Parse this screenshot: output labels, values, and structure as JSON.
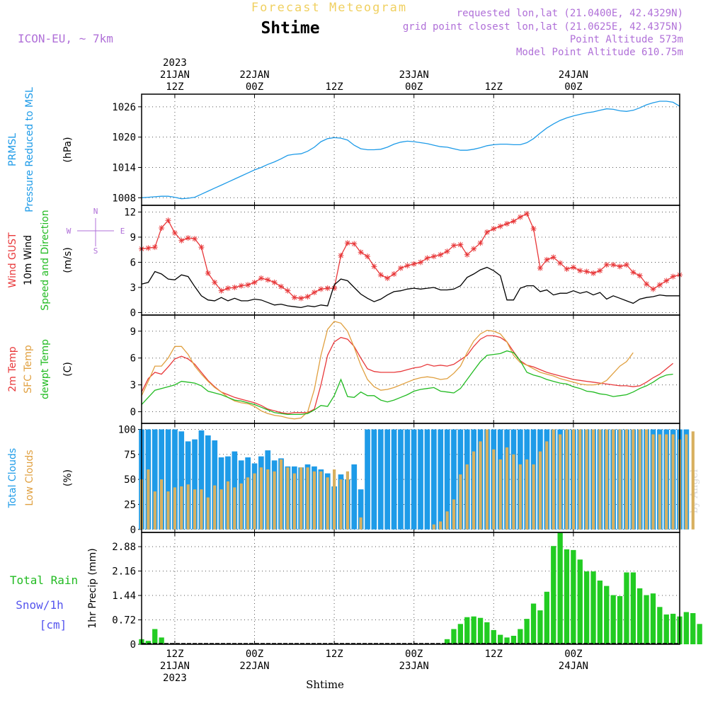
{
  "header": {
    "top_title": "Forecast Meteogram",
    "location": "Shtime",
    "model": "ICON-EU, ~ 7km",
    "requested": "requested lon,lat (21.0400E, 42.4329N)",
    "gridpoint": "grid point closest lon,lat (21.0625E, 42.4375N)",
    "point_alt": "Point Altitude 573m",
    "model_alt": "Model Point Altitude 610.75m",
    "footer_location": "Shtime",
    "credit": "by Angel"
  },
  "time_axis": {
    "top_labels": [
      {
        "t": 12,
        "lines": [
          "2023",
          "21JAN",
          "12Z"
        ]
      },
      {
        "t": 24,
        "lines": [
          "22JAN",
          "00Z"
        ]
      },
      {
        "t": 36,
        "lines": [
          "12Z"
        ]
      },
      {
        "t": 48,
        "lines": [
          "23JAN",
          "00Z"
        ]
      },
      {
        "t": 60,
        "lines": [
          "12Z"
        ]
      },
      {
        "t": 72,
        "lines": [
          "24JAN",
          "00Z"
        ]
      }
    ],
    "bottom_labels": [
      {
        "t": 12,
        "lines": [
          "12Z",
          "21JAN",
          "2023"
        ]
      },
      {
        "t": 24,
        "lines": [
          "00Z",
          "22JAN"
        ]
      },
      {
        "t": 36,
        "lines": [
          "12Z"
        ]
      },
      {
        "t": 48,
        "lines": [
          "00Z",
          "23JAN"
        ]
      },
      {
        "t": 60,
        "lines": [
          "12Z"
        ]
      },
      {
        "t": 72,
        "lines": [
          "00Z",
          "24JAN"
        ]
      }
    ]
  },
  "chart_data": [
    {
      "type": "line",
      "panel": "pressure",
      "ylabel_lines": [
        {
          "text": "PRMSL",
          "color": "#1e9be8"
        },
        {
          "text": "Pressure Reduced to MSL",
          "color": "#1e9be8"
        },
        {
          "text": "(hPa)",
          "color": "#000000"
        }
      ],
      "ylim": [
        1006.5,
        1028.5
      ],
      "yticks": [
        "1008",
        "1014",
        "1020",
        "1026"
      ],
      "ytick_values": [
        1008,
        1014,
        1020,
        1026
      ],
      "series": [
        {
          "color": "#1e9be8",
          "x_start": 7,
          "x_step": 1,
          "values": [
            1008.0,
            1008.1,
            1008.2,
            1008.3,
            1008.3,
            1008.1,
            1007.8,
            1007.9,
            1008.1,
            1008.7,
            1009.3,
            1009.9,
            1010.5,
            1011.1,
            1011.7,
            1012.3,
            1012.9,
            1013.5,
            1014.0,
            1014.6,
            1015.1,
            1015.7,
            1016.4,
            1016.6,
            1016.7,
            1017.2,
            1018.0,
            1019.1,
            1019.7,
            1019.9,
            1019.8,
            1019.4,
            1018.4,
            1017.7,
            1017.5,
            1017.5,
            1017.6,
            1018.0,
            1018.6,
            1019.0,
            1019.2,
            1019.1,
            1018.9,
            1018.7,
            1018.4,
            1018.1,
            1018.0,
            1017.7,
            1017.4,
            1017.4,
            1017.6,
            1017.9,
            1018.3,
            1018.5,
            1018.6,
            1018.6,
            1018.5,
            1018.5,
            1018.9,
            1019.7,
            1020.8,
            1021.8,
            1022.6,
            1023.3,
            1023.8,
            1024.2,
            1024.5,
            1024.8,
            1025.0,
            1025.3,
            1025.6,
            1025.5,
            1025.2,
            1025.1,
            1025.3,
            1025.8,
            1026.4,
            1026.8,
            1027.1,
            1027.1,
            1026.9,
            1026.1
          ]
        }
      ]
    },
    {
      "type": "line",
      "panel": "wind",
      "ylabel_lines": [
        {
          "text": "Wind GUST",
          "color": "#e8383a"
        },
        {
          "text": "10m Wind",
          "color": "#000000"
        },
        {
          "text": "Speed and Direction",
          "color": "#22bb22"
        },
        {
          "text": "(m/s)",
          "color": "#000000"
        }
      ],
      "compass": {
        "n": "N",
        "w": "W",
        "e": "E",
        "s": "S"
      },
      "ylim": [
        -0.3,
        12.8
      ],
      "yticks": [
        "0",
        "3",
        "6",
        "9",
        "12"
      ],
      "ytick_values": [
        0,
        3,
        6,
        9,
        12
      ],
      "series": [
        {
          "name": "gust",
          "color": "#e8383a",
          "x_start": 7,
          "x_step": 1,
          "values": [
            7.6,
            7.7,
            7.8,
            10.1,
            11.0,
            9.5,
            8.6,
            8.9,
            8.8,
            7.8,
            4.7,
            3.6,
            2.6,
            2.9,
            3.0,
            3.2,
            3.3,
            3.6,
            4.1,
            3.9,
            3.6,
            3.1,
            2.6,
            1.8,
            1.7,
            1.9,
            2.4,
            2.8,
            2.9,
            2.9,
            6.8,
            8.3,
            8.2,
            7.2,
            6.7,
            5.5,
            4.5,
            4.1,
            4.6,
            5.3,
            5.6,
            5.8,
            6.0,
            6.5,
            6.7,
            6.9,
            7.3,
            8.0,
            8.1,
            6.9,
            7.6,
            8.3,
            9.6,
            10.0,
            10.3,
            10.6,
            10.9,
            11.4,
            11.8,
            10.0,
            5.3,
            6.3,
            6.6,
            5.9,
            5.2,
            5.4,
            5.0,
            4.9,
            4.7,
            5.0,
            5.7,
            5.7,
            5.5,
            5.7,
            4.8,
            4.4,
            3.4,
            2.8,
            3.3,
            3.8,
            4.3,
            4.5
          ]
        },
        {
          "name": "wind10m",
          "color": "#000000",
          "x_start": 7,
          "x_step": 1,
          "values": [
            3.4,
            3.6,
            4.9,
            4.6,
            4.0,
            3.9,
            4.5,
            4.3,
            3.1,
            2.0,
            1.5,
            1.4,
            1.8,
            1.4,
            1.7,
            1.4,
            1.4,
            1.6,
            1.5,
            1.2,
            0.9,
            1.0,
            0.8,
            0.7,
            0.6,
            0.8,
            0.7,
            0.9,
            0.8,
            3.3,
            4.0,
            3.8,
            3.0,
            2.2,
            1.7,
            1.3,
            1.6,
            2.1,
            2.5,
            2.6,
            2.8,
            2.9,
            2.8,
            2.9,
            3.0,
            2.7,
            2.7,
            2.8,
            3.2,
            4.2,
            4.6,
            5.1,
            5.4,
            5.0,
            4.4,
            1.5,
            1.5,
            2.9,
            3.2,
            3.2,
            2.5,
            2.7,
            2.1,
            2.3,
            2.3,
            2.6,
            2.3,
            2.5,
            2.1,
            2.4,
            1.6,
            2.0,
            1.7,
            1.4,
            1.1,
            1.6,
            1.8,
            1.9,
            2.1,
            2.0,
            2.0,
            2.0
          ]
        }
      ]
    },
    {
      "type": "line",
      "panel": "temperature",
      "ylabel_lines": [
        {
          "text": "2m Temp",
          "color": "#e8383a"
        },
        {
          "text": "SFC Temp",
          "color": "#e0a040"
        },
        {
          "text": "dewpt Temp",
          "color": "#22bb22"
        },
        {
          "text": "(C)",
          "color": "#000000"
        }
      ],
      "ylim": [
        -1.3,
        10.8
      ],
      "yticks": [
        "0",
        "3",
        "6",
        "9"
      ],
      "ytick_values": [
        0,
        3,
        6,
        9
      ],
      "series": [
        {
          "name": "2m",
          "color": "#e8383a",
          "x_start": 7,
          "x_step": 1,
          "values": [
            2.2,
            3.7,
            4.4,
            4.2,
            5.0,
            5.9,
            6.2,
            5.9,
            5.3,
            4.4,
            3.5,
            2.8,
            2.2,
            1.9,
            1.6,
            1.4,
            1.2,
            1.0,
            0.7,
            0.3,
            0.1,
            -0.1,
            -0.2,
            -0.1,
            -0.1,
            -0.1,
            0.3,
            3.0,
            6.3,
            7.8,
            8.3,
            8.1,
            7.3,
            6.0,
            4.8,
            4.5,
            4.4,
            4.4,
            4.4,
            4.5,
            4.7,
            4.9,
            5.0,
            5.3,
            5.1,
            5.2,
            5.1,
            5.3,
            5.8,
            6.3,
            7.3,
            8.1,
            8.5,
            8.5,
            8.3,
            7.8,
            6.7,
            5.7,
            5.2,
            5.0,
            4.7,
            4.4,
            4.2,
            4.0,
            3.8,
            3.6,
            3.5,
            3.4,
            3.3,
            3.2,
            3.1,
            3.0,
            2.9,
            2.9,
            2.8,
            2.9,
            3.3,
            3.8,
            4.2,
            4.8,
            5.4
          ]
        },
        {
          "name": "sfc",
          "color": "#e0a040",
          "x_start": 7,
          "x_step": 1,
          "values": [
            1.8,
            3.4,
            5.1,
            5.1,
            6.0,
            7.3,
            7.3,
            6.4,
            5.1,
            4.2,
            3.4,
            2.7,
            2.2,
            1.6,
            1.2,
            1.0,
            0.9,
            0.6,
            0.1,
            -0.2,
            -0.4,
            -0.5,
            -0.7,
            -0.8,
            -0.7,
            0.0,
            2.5,
            6.3,
            9.2,
            10.1,
            9.9,
            9.0,
            7.2,
            5.2,
            3.6,
            2.8,
            2.4,
            2.5,
            2.7,
            3.0,
            3.3,
            3.6,
            3.8,
            3.9,
            3.8,
            3.6,
            3.7,
            4.3,
            5.1,
            6.6,
            7.9,
            8.7,
            9.1,
            9.0,
            8.7,
            7.8,
            6.3,
            5.5,
            5.2,
            4.8,
            4.4,
            4.2,
            4.0,
            3.7,
            3.5,
            3.3,
            3.1,
            3.0,
            3.0,
            3.1,
            3.5,
            4.3,
            5.1,
            5.6,
            6.6
          ]
        },
        {
          "name": "dewpt",
          "color": "#22bb22",
          "x_start": 7,
          "x_step": 1,
          "values": [
            0.8,
            1.6,
            2.4,
            2.6,
            2.8,
            3.0,
            3.4,
            3.3,
            3.2,
            2.9,
            2.3,
            2.1,
            1.9,
            1.6,
            1.3,
            1.2,
            1.0,
            0.8,
            0.5,
            0.2,
            -0.1,
            -0.2,
            -0.3,
            -0.3,
            -0.3,
            -0.2,
            0.2,
            0.7,
            0.6,
            1.8,
            3.6,
            1.7,
            1.6,
            2.2,
            1.8,
            1.8,
            1.3,
            1.1,
            1.3,
            1.6,
            1.9,
            2.3,
            2.5,
            2.6,
            2.7,
            2.3,
            2.2,
            2.1,
            2.6,
            3.6,
            4.6,
            5.6,
            6.3,
            6.4,
            6.5,
            6.8,
            6.6,
            5.7,
            4.4,
            4.1,
            3.9,
            3.6,
            3.4,
            3.2,
            3.1,
            2.8,
            2.6,
            2.3,
            2.2,
            2.0,
            1.9,
            1.7,
            1.8,
            1.9,
            2.2,
            2.6,
            2.9,
            3.3,
            3.8,
            4.1,
            4.2
          ]
        }
      ]
    },
    {
      "type": "bar",
      "panel": "clouds",
      "ylabel_lines": [
        {
          "text": "Total Clouds",
          "color": "#1e9be8"
        },
        {
          "text": "Low Clouds",
          "color": "#e0a040"
        },
        {
          "text": "(%)",
          "color": "#000000"
        }
      ],
      "ylim": [
        -3,
        106
      ],
      "yticks": [
        "0",
        "25",
        "50",
        "75",
        "100"
      ],
      "ytick_values": [
        0,
        25,
        50,
        75,
        100
      ],
      "series": [
        {
          "name": "total",
          "color": "#1e9be8",
          "x_start": 7,
          "x_step": 1,
          "values": [
            100,
            100,
            100,
            100,
            100,
            100,
            98,
            88,
            90,
            99,
            94,
            89,
            72,
            73,
            78,
            69,
            72,
            66,
            73,
            79,
            69,
            71,
            63,
            63,
            62,
            65,
            63,
            60,
            56,
            43,
            55,
            50,
            65,
            40,
            100,
            100,
            100,
            100,
            100,
            100,
            100,
            100,
            100,
            100,
            100,
            100,
            100,
            100,
            100,
            100,
            100,
            100,
            100,
            100,
            100,
            100,
            100,
            100,
            100,
            100,
            100,
            100,
            100,
            100,
            100,
            100,
            100,
            100,
            100,
            100,
            100,
            100,
            100,
            100,
            100,
            100,
            100,
            100,
            100,
            100,
            100,
            100,
            100
          ]
        },
        {
          "name": "low",
          "color": "#d8b060",
          "x_start": 7,
          "x_step": 1,
          "values": [
            50,
            60,
            38,
            50,
            38,
            42,
            43,
            45,
            40,
            40,
            32,
            44,
            40,
            48,
            42,
            46,
            52,
            56,
            62,
            60,
            58,
            70,
            62,
            56,
            62,
            62,
            58,
            58,
            52,
            60,
            50,
            58,
            0,
            12,
            0,
            0,
            0,
            0,
            0,
            0,
            0,
            0,
            0,
            0,
            5,
            8,
            18,
            30,
            55,
            65,
            78,
            88,
            100,
            80,
            70,
            82,
            75,
            65,
            70,
            65,
            78,
            88,
            100,
            95,
            100,
            100,
            100,
            100,
            100,
            100,
            100,
            100,
            100,
            100,
            100,
            100,
            100,
            95,
            95,
            95,
            95,
            90,
            95,
            98
          ]
        }
      ]
    },
    {
      "type": "bar",
      "panel": "precip",
      "ylabel_lines": [
        {
          "text": "1hr Precip (mm)",
          "color": "#000000"
        }
      ],
      "legend": [
        {
          "text": "Total  Rain",
          "color": "#22bb22"
        },
        {
          "text": "Snow/1h",
          "color": "#5555ee"
        },
        {
          "text": "[cm]",
          "color": "#5555ee"
        }
      ],
      "ylim": [
        0,
        3.3
      ],
      "yticks": [
        "0",
        "0.72",
        "1.44",
        "2.16",
        "2.88"
      ],
      "ytick_values": [
        0,
        0.72,
        1.44,
        2.16,
        2.88
      ],
      "series": [
        {
          "name": "rain",
          "color": "#22cc22",
          "x_start": 7,
          "x_step": 1,
          "values": [
            0.15,
            0.1,
            0.45,
            0.2,
            0,
            0,
            0,
            0,
            0,
            0,
            0,
            0,
            0,
            0,
            0,
            0,
            0,
            0,
            0,
            0,
            0,
            0,
            0,
            0,
            0,
            0,
            0,
            0,
            0,
            0,
            0,
            0,
            0,
            0,
            0,
            0,
            0,
            0,
            0,
            0,
            0,
            0,
            0,
            0,
            0,
            0,
            0.15,
            0.45,
            0.6,
            0.8,
            0.82,
            0.78,
            0.65,
            0.42,
            0.28,
            0.2,
            0.25,
            0.45,
            0.75,
            1.2,
            1.0,
            1.55,
            2.9,
            3.3,
            2.8,
            2.78,
            2.5,
            2.15,
            2.15,
            1.88,
            1.72,
            1.45,
            1.42,
            2.12,
            2.12,
            1.65,
            1.45,
            1.5,
            1.1,
            0.88,
            0.9,
            0.82,
            0.95,
            0.92,
            0.6
          ]
        }
      ]
    }
  ]
}
